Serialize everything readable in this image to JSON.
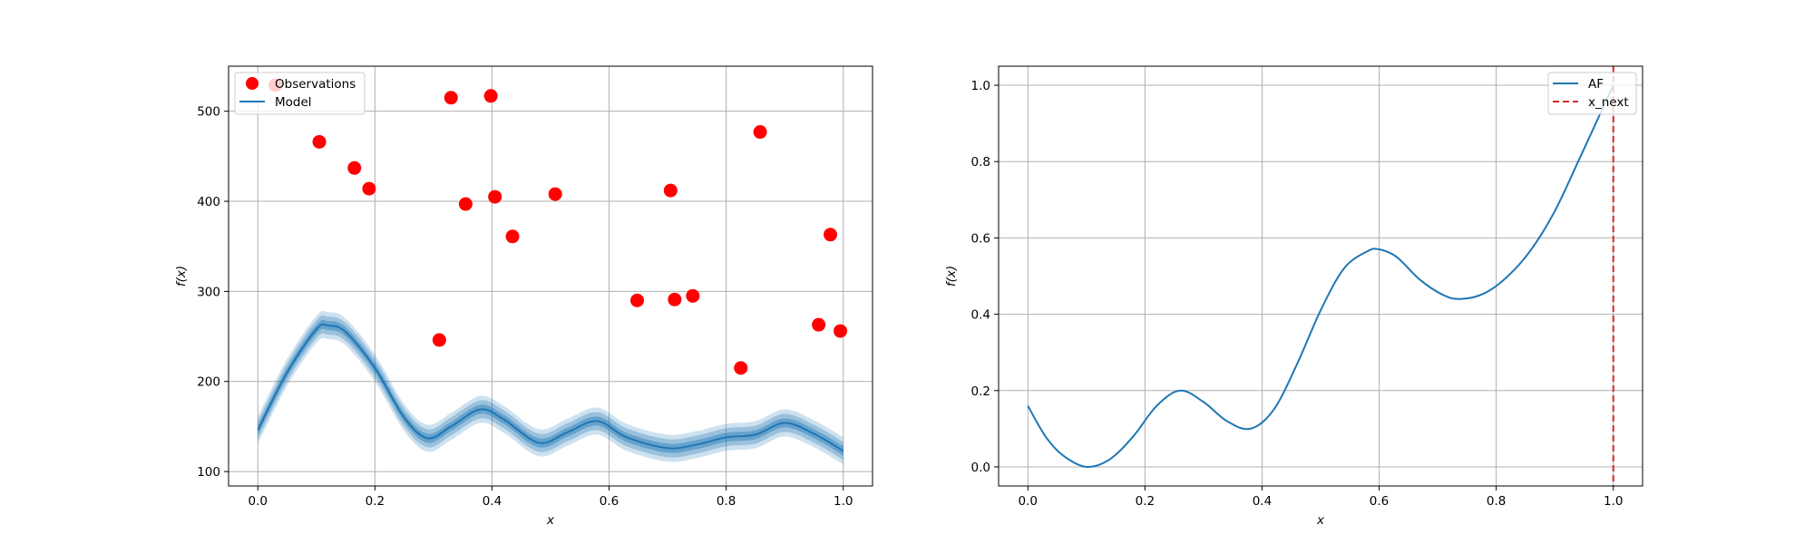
{
  "chart_data": [
    {
      "type": "scatter",
      "xlabel": "x",
      "ylabel": "f(x)",
      "xlim": [
        -0.05,
        1.05
      ],
      "ylim": [
        84,
        550
      ],
      "xticks": [
        0.0,
        0.2,
        0.4,
        0.6,
        0.8,
        1.0
      ],
      "xtick_labels": [
        "0.0",
        "0.2",
        "0.4",
        "0.6",
        "0.8",
        "1.0"
      ],
      "yticks": [
        100,
        200,
        300,
        400,
        500
      ],
      "ytick_labels": [
        "100",
        "200",
        "300",
        "400",
        "500"
      ],
      "grid": true,
      "legend": {
        "placement": "upper-left",
        "entries": [
          "Observations",
          "Model"
        ]
      },
      "observations": {
        "name": "Observations",
        "color": "#ff0000",
        "x": [
          0.03,
          0.105,
          0.165,
          0.19,
          0.31,
          0.33,
          0.355,
          0.398,
          0.405,
          0.435,
          0.508,
          0.648,
          0.705,
          0.712,
          0.743,
          0.825,
          0.858,
          0.958,
          0.978,
          0.995
        ],
        "y": [
          529,
          466,
          437,
          414,
          246,
          515,
          397,
          517,
          405,
          361,
          408,
          290,
          412,
          291,
          295,
          215,
          477,
          263,
          363,
          256
        ]
      },
      "model": {
        "name": "Model",
        "color": "#1f77b4",
        "x": [
          0.0,
          0.05,
          0.1,
          0.12,
          0.15,
          0.2,
          0.25,
          0.29,
          0.33,
          0.38,
          0.42,
          0.48,
          0.53,
          0.58,
          0.63,
          0.7,
          0.75,
          0.8,
          0.85,
          0.9,
          0.95,
          1.0
        ],
        "mean": [
          146,
          210,
          258,
          262,
          255,
          215,
          160,
          137,
          150,
          169,
          158,
          132,
          144,
          156,
          138,
          126,
          130,
          138,
          141,
          154,
          142,
          123
        ],
        "bands": [
          5,
          10,
          15
        ]
      }
    },
    {
      "type": "line",
      "xlabel": "x",
      "ylabel": "f(x)",
      "xlim": [
        -0.05,
        1.05
      ],
      "ylim": [
        -0.05,
        1.05
      ],
      "xticks": [
        0.0,
        0.2,
        0.4,
        0.6,
        0.8,
        1.0
      ],
      "xtick_labels": [
        "0.0",
        "0.2",
        "0.4",
        "0.6",
        "0.8",
        "1.0"
      ],
      "yticks": [
        0.0,
        0.2,
        0.4,
        0.6,
        0.8,
        1.0
      ],
      "ytick_labels": [
        "0.0",
        "0.2",
        "0.4",
        "0.6",
        "0.8",
        "1.0"
      ],
      "grid": true,
      "legend": {
        "placement": "upper-right",
        "entries": [
          "AF",
          "x_next"
        ]
      },
      "af": {
        "name": "AF",
        "color": "#1f77b4",
        "x": [
          0.0,
          0.03,
          0.06,
          0.1,
          0.14,
          0.18,
          0.22,
          0.26,
          0.3,
          0.34,
          0.38,
          0.42,
          0.46,
          0.5,
          0.54,
          0.58,
          0.6,
          0.63,
          0.67,
          0.71,
          0.74,
          0.78,
          0.82,
          0.86,
          0.9,
          0.94,
          0.97,
          1.0
        ],
        "y": [
          0.16,
          0.08,
          0.03,
          0.0,
          0.02,
          0.08,
          0.16,
          0.2,
          0.17,
          0.12,
          0.1,
          0.15,
          0.27,
          0.41,
          0.52,
          0.565,
          0.57,
          0.55,
          0.49,
          0.45,
          0.44,
          0.455,
          0.5,
          0.57,
          0.67,
          0.8,
          0.9,
          1.0
        ]
      },
      "x_next": {
        "name": "x_next",
        "color": "#d62728",
        "x": 1.0
      }
    }
  ]
}
